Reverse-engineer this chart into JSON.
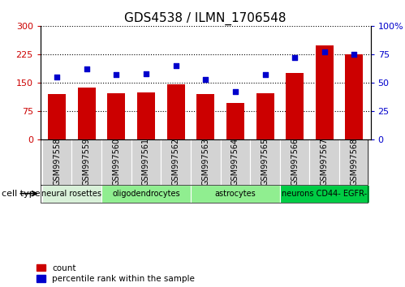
{
  "title": "GDS4538 / ILMN_1706548",
  "samples": [
    "GSM997558",
    "GSM997559",
    "GSM997560",
    "GSM997561",
    "GSM997562",
    "GSM997563",
    "GSM997564",
    "GSM997565",
    "GSM997566",
    "GSM997567",
    "GSM997568"
  ],
  "counts": [
    120,
    137,
    122,
    125,
    145,
    120,
    95,
    122,
    175,
    248,
    225
  ],
  "percentiles": [
    55,
    62,
    57,
    58,
    65,
    53,
    42,
    57,
    72,
    77,
    75
  ],
  "left_ylim": [
    0,
    300
  ],
  "right_ylim": [
    0,
    100
  ],
  "left_yticks": [
    0,
    75,
    150,
    225,
    300
  ],
  "right_yticks": [
    0,
    25,
    50,
    75,
    100
  ],
  "bar_color": "#cc0000",
  "marker_color": "#0000cc",
  "cell_type_label": "cell type",
  "group_info": [
    {
      "label": "neural rosettes",
      "start": 0,
      "end": 1,
      "color": "#d8f0d8"
    },
    {
      "label": "oligodendrocytes",
      "start": 2,
      "end": 4,
      "color": "#90ee90"
    },
    {
      "label": "astrocytes",
      "start": 5,
      "end": 7,
      "color": "#90ee90"
    },
    {
      "label": "neurons CD44- EGFR-",
      "start": 8,
      "end": 10,
      "color": "#00cc44"
    }
  ],
  "sample_box_color": "#d3d3d3",
  "legend_count_label": "count",
  "legend_pct_label": "percentile rank within the sample",
  "title_fontsize": 11,
  "tick_label_fontsize": 7,
  "group_label_fontsize": 7
}
